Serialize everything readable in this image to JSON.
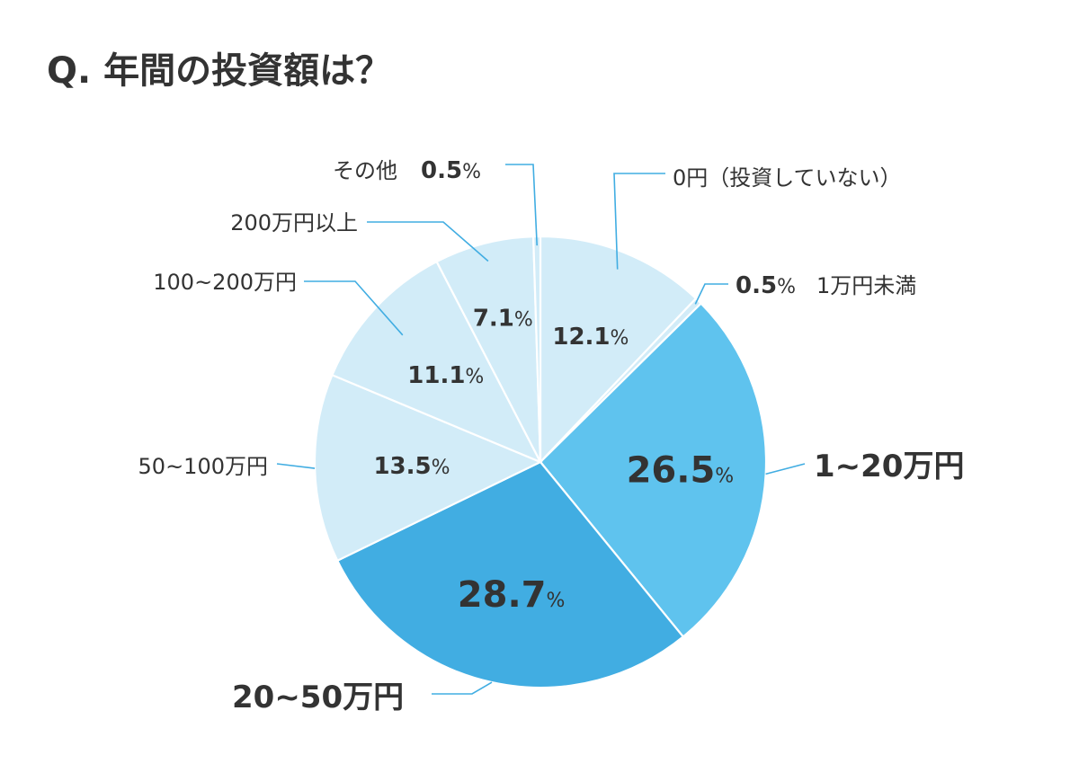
{
  "chart_data": {
    "type": "pie",
    "title": "Q. 年間の投資額は？",
    "slices": [
      {
        "label": "0円（投資していない）",
        "value": 12.1,
        "pct_text": "12.1%",
        "color": "#d2ecf8"
      },
      {
        "label": "1万円未満",
        "value": 0.5,
        "pct_text": "0.5%",
        "color": "#d2ecf8"
      },
      {
        "label": "1~20万円",
        "value": 26.5,
        "pct_text": "26.5%",
        "color": "#5fc3ee"
      },
      {
        "label": "20~50万円",
        "value": 28.7,
        "pct_text": "28.7%",
        "color": "#41ade2"
      },
      {
        "label": "50~100万円",
        "value": 13.5,
        "pct_text": "13.5%",
        "color": "#d2ecf8"
      },
      {
        "label": "100~200万円",
        "value": 11.1,
        "pct_text": "11.1%",
        "color": "#d2ecf8"
      },
      {
        "label": "200万円以上",
        "value": 7.1,
        "pct_text": "7.1%",
        "color": "#d2ecf8"
      },
      {
        "label": "その他",
        "value": 0.5,
        "pct_text": "0.5%",
        "color": "#d2ecf8"
      }
    ],
    "start": "top",
    "direction": "clockwise",
    "leader_color": "#41ade2",
    "text_color": "#333333",
    "label_white_color": "#ffffff"
  }
}
